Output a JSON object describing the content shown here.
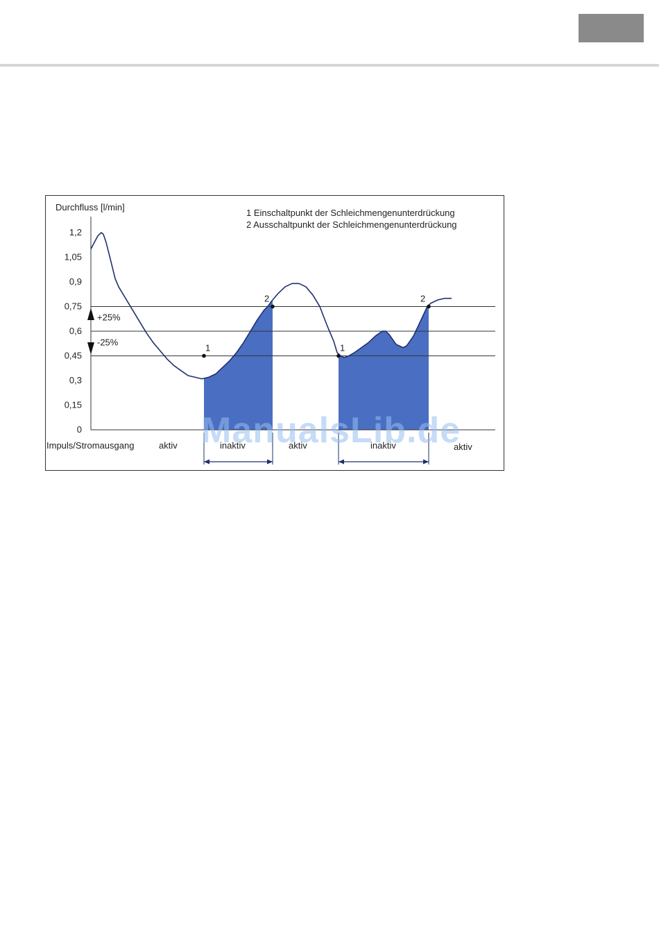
{
  "page": {
    "watermark": "ManualsLib.de"
  },
  "chart_data": {
    "type": "line",
    "ylabel": "Durchfluss [l/min]",
    "yticks": [
      "1,2",
      "1,05",
      "0,9",
      "0,75",
      "0,6",
      "0,45",
      "0,3",
      "0,15",
      "0"
    ],
    "ylim": [
      0,
      1.2
    ],
    "legend": [
      "1 Einschaltpunkt der Schleichmengenunterdrückung",
      "2 Ausschaltpunkt der Schleichmengenunterdrückung"
    ],
    "thresholds": [
      {
        "value": 0.75,
        "label": "+25%"
      },
      {
        "value": 0.6,
        "label": ""
      },
      {
        "value": 0.45,
        "label": "-25%"
      }
    ],
    "output_row": {
      "label": "Impuls/Stromausgang",
      "states": [
        "aktiv",
        "inaktiv",
        "aktiv",
        "inaktiv",
        "aktiv"
      ]
    },
    "series": [
      {
        "values": [
          [
            0,
            1.1
          ],
          [
            5,
            1.14
          ],
          [
            10,
            1.18
          ],
          [
            15,
            1.2
          ],
          [
            18,
            1.19
          ],
          [
            22,
            1.14
          ],
          [
            28,
            1.04
          ],
          [
            35,
            0.92
          ],
          [
            40,
            0.87
          ],
          [
            50,
            0.8
          ],
          [
            60,
            0.73
          ],
          [
            70,
            0.66
          ],
          [
            80,
            0.59
          ],
          [
            90,
            0.53
          ],
          [
            100,
            0.48
          ],
          [
            110,
            0.43
          ],
          [
            120,
            0.39
          ],
          [
            130,
            0.36
          ],
          [
            140,
            0.33
          ],
          [
            150,
            0.32
          ],
          [
            160,
            0.31
          ],
          [
            170,
            0.32
          ],
          [
            180,
            0.34
          ],
          [
            190,
            0.38
          ],
          [
            200,
            0.42
          ],
          [
            210,
            0.47
          ],
          [
            220,
            0.53
          ],
          [
            230,
            0.6
          ],
          [
            240,
            0.67
          ],
          [
            250,
            0.73
          ],
          [
            255,
            0.75
          ],
          [
            260,
            0.78
          ],
          [
            270,
            0.83
          ],
          [
            280,
            0.87
          ],
          [
            290,
            0.89
          ],
          [
            300,
            0.89
          ],
          [
            310,
            0.87
          ],
          [
            320,
            0.82
          ],
          [
            330,
            0.75
          ],
          [
            340,
            0.64
          ],
          [
            350,
            0.54
          ],
          [
            355,
            0.47
          ],
          [
            360,
            0.45
          ],
          [
            365,
            0.44
          ],
          [
            372,
            0.45
          ],
          [
            380,
            0.47
          ],
          [
            390,
            0.5
          ],
          [
            400,
            0.53
          ],
          [
            410,
            0.57
          ],
          [
            420,
            0.6
          ],
          [
            425,
            0.6
          ],
          [
            430,
            0.58
          ],
          [
            440,
            0.52
          ],
          [
            450,
            0.5
          ],
          [
            455,
            0.51
          ],
          [
            465,
            0.57
          ],
          [
            475,
            0.66
          ],
          [
            485,
            0.75
          ],
          [
            490,
            0.77
          ],
          [
            500,
            0.79
          ],
          [
            510,
            0.8
          ],
          [
            520,
            0.8
          ]
        ]
      }
    ],
    "markers": [
      {
        "label": "1",
        "x": 163,
        "y": 0.45
      },
      {
        "label": "2",
        "x": 262,
        "y": 0.75
      },
      {
        "label": "1",
        "x": 357,
        "y": 0.45
      },
      {
        "label": "2",
        "x": 487,
        "y": 0.75
      }
    ],
    "shaded_regions": [
      [
        163,
        262
      ],
      [
        357,
        487
      ]
    ]
  },
  "colors": {
    "line": "#1f2f6e",
    "fill": "#4a6fc2",
    "grid": "#333333"
  }
}
